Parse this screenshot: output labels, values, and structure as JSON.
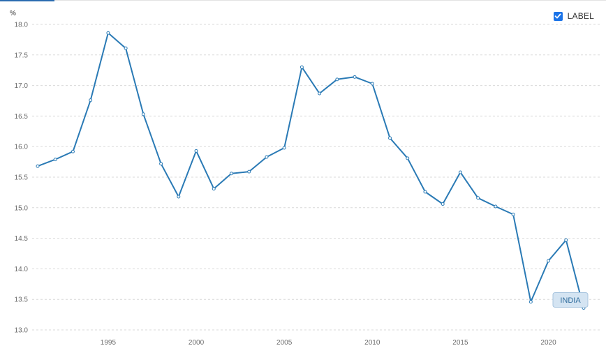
{
  "colors": {
    "series": "#2a7ab5",
    "grid": "#d9d9d9",
    "checkbox": "#1a73e8"
  },
  "legend": {
    "label": "LABEL",
    "checked": true,
    "icon": "checkmark-icon"
  },
  "chart_data": {
    "type": "line",
    "ylabel": "%",
    "xlabel": "",
    "ylim": [
      13.0,
      18.0
    ],
    "yticks": [
      "13.0",
      "13.5",
      "14.0",
      "14.5",
      "15.0",
      "15.5",
      "16.0",
      "16.5",
      "17.0",
      "17.5",
      "18.0"
    ],
    "xlim": [
      1991,
      2022
    ],
    "xticks": [
      "1995",
      "2000",
      "2005",
      "2010",
      "2015",
      "2020"
    ],
    "grid": "horizontal dashed",
    "series": [
      {
        "name": "INDIA",
        "x": [
          1991,
          1992,
          1993,
          1994,
          1995,
          1996,
          1997,
          1998,
          1999,
          2000,
          2001,
          2002,
          2003,
          2004,
          2005,
          2006,
          2007,
          2008,
          2009,
          2010,
          2011,
          2012,
          2013,
          2014,
          2015,
          2016,
          2017,
          2018,
          2019,
          2020,
          2021,
          2022
        ],
        "values": [
          15.68,
          15.79,
          15.92,
          16.76,
          17.86,
          17.61,
          16.53,
          15.72,
          15.18,
          15.93,
          15.31,
          15.56,
          15.59,
          15.83,
          15.98,
          17.3,
          16.87,
          17.1,
          17.14,
          17.03,
          16.14,
          15.81,
          15.26,
          15.06,
          15.58,
          15.16,
          15.02,
          14.89,
          13.46,
          14.13,
          14.47,
          13.36
        ]
      }
    ]
  }
}
